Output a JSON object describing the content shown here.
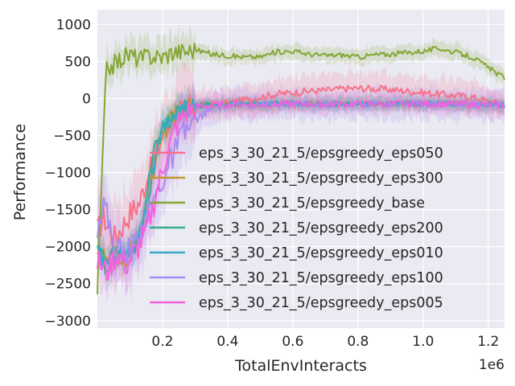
{
  "chart_data": {
    "type": "line",
    "title": "",
    "xlabel": "TotalEnvInteracts",
    "ylabel": "Performance",
    "x_offset_label": "1e6",
    "xlim": [
      0.0,
      1.25
    ],
    "ylim": [
      -3100,
      1200
    ],
    "x_ticks": [
      0.2,
      0.4,
      0.6,
      0.8,
      1.0,
      1.2
    ],
    "x_tick_labels": [
      "0.2",
      "0.4",
      "0.6",
      "0.8",
      "1.0",
      "1.2"
    ],
    "y_ticks": [
      -3000,
      -2500,
      -2000,
      -1500,
      -1000,
      -500,
      0,
      500,
      1000
    ],
    "y_tick_labels": [
      "−3000",
      "−2500",
      "−2000",
      "−1500",
      "−1000",
      "−500",
      "0",
      "500",
      "1000"
    ],
    "grid": true,
    "legend_position": "center-right",
    "series": [
      {
        "name": "eps_3_30_21_5/epsgreedy_eps050",
        "color": "#f77189",
        "band": 350,
        "points": [
          [
            0.0,
            -1800
          ],
          [
            0.02,
            -1600
          ],
          [
            0.05,
            -1900
          ],
          [
            0.08,
            -1700
          ],
          [
            0.1,
            -1550
          ],
          [
            0.13,
            -1400
          ],
          [
            0.15,
            -1100
          ],
          [
            0.17,
            -900
          ],
          [
            0.2,
            -500
          ],
          [
            0.23,
            -250
          ],
          [
            0.27,
            -150
          ],
          [
            0.3,
            -100
          ],
          [
            0.35,
            -80
          ],
          [
            0.4,
            -60
          ],
          [
            0.45,
            -20
          ],
          [
            0.5,
            20
          ],
          [
            0.55,
            60
          ],
          [
            0.6,
            80
          ],
          [
            0.65,
            100
          ],
          [
            0.7,
            110
          ],
          [
            0.75,
            130
          ],
          [
            0.8,
            140
          ],
          [
            0.85,
            130
          ],
          [
            0.9,
            120
          ],
          [
            0.95,
            100
          ],
          [
            1.0,
            80
          ],
          [
            1.05,
            60
          ],
          [
            1.1,
            40
          ],
          [
            1.15,
            20
          ],
          [
            1.2,
            -40
          ],
          [
            1.25,
            -80
          ]
        ]
      },
      {
        "name": "eps_3_30_21_5/epsgreedy_eps300",
        "color": "#c69432",
        "band": 150,
        "points": [
          [
            0.0,
            -2000
          ],
          [
            0.03,
            -2200
          ],
          [
            0.06,
            -2100
          ],
          [
            0.09,
            -2200
          ],
          [
            0.12,
            -1900
          ],
          [
            0.15,
            -1500
          ],
          [
            0.17,
            -1000
          ],
          [
            0.2,
            -500
          ],
          [
            0.23,
            -250
          ],
          [
            0.27,
            -120
          ],
          [
            0.3,
            -90
          ],
          [
            0.4,
            -80
          ],
          [
            0.5,
            -85
          ],
          [
            0.6,
            -70
          ],
          [
            0.7,
            -80
          ],
          [
            0.8,
            -70
          ],
          [
            0.9,
            -75
          ],
          [
            1.0,
            -65
          ],
          [
            1.1,
            -70
          ],
          [
            1.2,
            -80
          ],
          [
            1.25,
            -90
          ]
        ]
      },
      {
        "name": "eps_3_30_21_5/epsgreedy_base",
        "color": "#84a734",
        "band": 170,
        "points": [
          [
            0.0,
            -2600
          ],
          [
            0.02,
            -400
          ],
          [
            0.025,
            200
          ],
          [
            0.03,
            420
          ],
          [
            0.05,
            460
          ],
          [
            0.08,
            560
          ],
          [
            0.1,
            600
          ],
          [
            0.13,
            530
          ],
          [
            0.16,
            580
          ],
          [
            0.2,
            560
          ],
          [
            0.23,
            630
          ],
          [
            0.27,
            640
          ],
          [
            0.3,
            660
          ],
          [
            0.35,
            600
          ],
          [
            0.4,
            580
          ],
          [
            0.45,
            560
          ],
          [
            0.5,
            560
          ],
          [
            0.55,
            630
          ],
          [
            0.6,
            640
          ],
          [
            0.65,
            600
          ],
          [
            0.7,
            580
          ],
          [
            0.75,
            590
          ],
          [
            0.8,
            560
          ],
          [
            0.85,
            590
          ],
          [
            0.9,
            600
          ],
          [
            0.95,
            620
          ],
          [
            1.0,
            640
          ],
          [
            1.05,
            680
          ],
          [
            1.1,
            620
          ],
          [
            1.15,
            560
          ],
          [
            1.2,
            420
          ],
          [
            1.23,
            330
          ],
          [
            1.25,
            280
          ]
        ]
      },
      {
        "name": "eps_3_30_21_5/epsgreedy_eps200",
        "color": "#34ae8d",
        "band": 150,
        "points": [
          [
            0.0,
            -2000
          ],
          [
            0.03,
            -2300
          ],
          [
            0.06,
            -2100
          ],
          [
            0.09,
            -2150
          ],
          [
            0.12,
            -1950
          ],
          [
            0.15,
            -1400
          ],
          [
            0.17,
            -800
          ],
          [
            0.2,
            -400
          ],
          [
            0.23,
            -250
          ],
          [
            0.27,
            -150
          ],
          [
            0.3,
            -100
          ],
          [
            0.35,
            -80
          ],
          [
            0.4,
            -70
          ],
          [
            0.5,
            -70
          ],
          [
            0.6,
            -65
          ],
          [
            0.7,
            -75
          ],
          [
            0.8,
            -70
          ],
          [
            0.9,
            -70
          ],
          [
            1.0,
            -65
          ],
          [
            1.1,
            -70
          ],
          [
            1.2,
            -80
          ],
          [
            1.25,
            -90
          ]
        ]
      },
      {
        "name": "eps_3_30_21_5/epsgreedy_eps010",
        "color": "#38a9c5",
        "band": 150,
        "points": [
          [
            0.0,
            -2100
          ],
          [
            0.03,
            -2200
          ],
          [
            0.06,
            -2050
          ],
          [
            0.09,
            -2150
          ],
          [
            0.12,
            -1900
          ],
          [
            0.15,
            -1500
          ],
          [
            0.17,
            -1000
          ],
          [
            0.2,
            -450
          ],
          [
            0.23,
            -250
          ],
          [
            0.27,
            -130
          ],
          [
            0.3,
            -100
          ],
          [
            0.35,
            -80
          ],
          [
            0.4,
            -70
          ],
          [
            0.5,
            -70
          ],
          [
            0.6,
            -70
          ],
          [
            0.7,
            -80
          ],
          [
            0.8,
            -70
          ],
          [
            0.9,
            -70
          ],
          [
            1.0,
            -70
          ],
          [
            1.1,
            -75
          ],
          [
            1.2,
            -80
          ],
          [
            1.25,
            -90
          ]
        ]
      },
      {
        "name": "eps_3_30_21_5/epsgreedy_eps100",
        "color": "#a48cf4",
        "band": 350,
        "points": [
          [
            0.0,
            -1700
          ],
          [
            0.02,
            -1400
          ],
          [
            0.05,
            -1950
          ],
          [
            0.08,
            -2100
          ],
          [
            0.11,
            -2000
          ],
          [
            0.14,
            -1700
          ],
          [
            0.17,
            -1400
          ],
          [
            0.2,
            -1100
          ],
          [
            0.23,
            -800
          ],
          [
            0.26,
            -500
          ],
          [
            0.3,
            -300
          ],
          [
            0.33,
            -200
          ],
          [
            0.36,
            -120
          ],
          [
            0.4,
            -90
          ],
          [
            0.5,
            -80
          ],
          [
            0.6,
            -75
          ],
          [
            0.7,
            -80
          ],
          [
            0.8,
            -75
          ],
          [
            0.9,
            -70
          ],
          [
            1.0,
            -70
          ],
          [
            1.1,
            -75
          ],
          [
            1.2,
            -85
          ],
          [
            1.25,
            -90
          ]
        ]
      },
      {
        "name": "eps_3_30_21_5/epsgreedy_eps005",
        "color": "#f461dd",
        "band": 220,
        "points": [
          [
            0.0,
            -2200
          ],
          [
            0.03,
            -2350
          ],
          [
            0.06,
            -2100
          ],
          [
            0.09,
            -2250
          ],
          [
            0.12,
            -2050
          ],
          [
            0.15,
            -1800
          ],
          [
            0.18,
            -1300
          ],
          [
            0.21,
            -800
          ],
          [
            0.24,
            -400
          ],
          [
            0.27,
            -200
          ],
          [
            0.3,
            -120
          ],
          [
            0.35,
            -90
          ],
          [
            0.4,
            -80
          ],
          [
            0.5,
            -80
          ],
          [
            0.6,
            -75
          ],
          [
            0.7,
            -80
          ],
          [
            0.8,
            -75
          ],
          [
            0.9,
            -75
          ],
          [
            1.0,
            -70
          ],
          [
            1.1,
            -75
          ],
          [
            1.2,
            -85
          ],
          [
            1.25,
            -90
          ]
        ]
      }
    ]
  }
}
